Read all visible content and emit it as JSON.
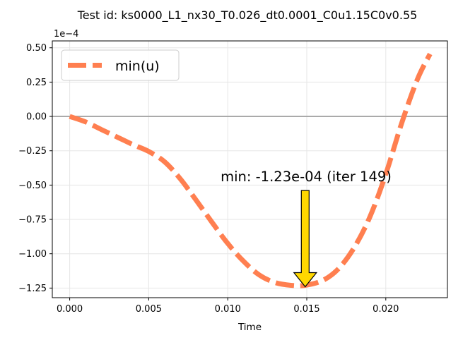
{
  "chart_data": {
    "type": "line",
    "title": "Test id:  ks0000_L1_nx30_T0.026_dt0.0001_C0u1.15C0v0.55",
    "xlabel": "Time",
    "ylabel": "",
    "y_multiplier_label": "1e−4",
    "xlim": [
      -0.0011,
      0.0239
    ],
    "ylim": [
      -0.000132,
      5.5e-05
    ],
    "x_ticks": [
      0.0,
      0.005,
      0.01,
      0.015,
      0.02
    ],
    "x_tick_labels": [
      "0.000",
      "0.005",
      "0.010",
      "0.015",
      "0.020"
    ],
    "y_ticks": [
      5e-05,
      2.5e-05,
      0.0,
      -2.5e-05,
      -5e-05,
      -7.5e-05,
      -0.0001,
      -0.000125
    ],
    "y_tick_labels": [
      "0.50",
      "0.25",
      "0.00",
      "−0.25",
      "−0.50",
      "−0.75",
      "−1.00",
      "−1.25"
    ],
    "grid": true,
    "zero_line": true,
    "legend_location": "upper left",
    "series": [
      {
        "name": "min(u)",
        "color": "#ff7f50",
        "line_style": "dashed",
        "x": [
          0.0,
          0.001,
          0.002,
          0.003,
          0.004,
          0.005,
          0.006,
          0.007,
          0.008,
          0.009,
          0.01,
          0.011,
          0.012,
          0.013,
          0.014,
          0.0149,
          0.016,
          0.017,
          0.018,
          0.019,
          0.02,
          0.021,
          0.022,
          0.0228
        ],
        "values": [
          0.0,
          -4e-06,
          -9.5e-06,
          -1.5e-05,
          -2.05e-05,
          -2.55e-05,
          -3.3e-05,
          -4.55e-05,
          -6.1e-05,
          -7.7e-05,
          -9.25e-05,
          -0.0001055,
          -0.0001155,
          -0.000121,
          -0.000123,
          -0.000123,
          -0.0001195,
          -0.000111,
          -9.55e-05,
          -7.3e-05,
          -4.2e-05,
          -5e-06,
          2.7e-05,
          4.55e-05
        ]
      }
    ],
    "annotation": {
      "text": "min: -1.23e-04 (iter 149)",
      "x": 0.0149,
      "y": -0.000123,
      "arrow_color": "#ffd700"
    }
  }
}
